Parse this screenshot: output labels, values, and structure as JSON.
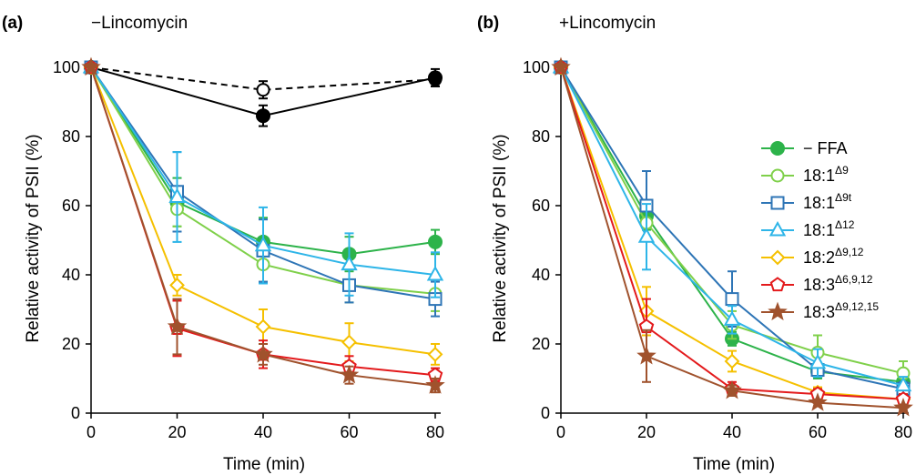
{
  "chart_data": [
    {
      "type": "line",
      "panel_label": "(a)",
      "title": "−Lincomycin",
      "xlabel": "Time (min)",
      "ylabel": "Relative activity of PSII (%)",
      "x": [
        0,
        20,
        40,
        60,
        80
      ],
      "xlim": [
        0,
        80
      ],
      "ylim": [
        0,
        100
      ],
      "xticks": [
        "0",
        "20",
        "40",
        "60",
        "80"
      ],
      "yticks": [
        "0",
        "20",
        "40",
        "60",
        "80",
        "100"
      ],
      "grid": false,
      "legend": null,
      "series": [
        {
          "x": [
            0,
            40,
            80
          ],
          "values": [
            100,
            93.5,
            96.5
          ],
          "errors": [
            1.5,
            2.5,
            2.0
          ],
          "color": "#000000",
          "marker": "circle-open",
          "dash": true
        },
        {
          "x": [
            0,
            40,
            80
          ],
          "values": [
            100,
            86,
            97
          ],
          "errors": [
            1.5,
            3.0,
            2.5
          ],
          "color": "#000000",
          "marker": "circle-filled",
          "dash": false
        },
        {
          "name": "− FFA",
          "values": [
            100,
            61,
            49.5,
            46,
            49.5
          ],
          "errors": [
            1,
            7,
            7,
            5,
            3.5
          ],
          "color": "#2db34a",
          "marker": "circle-filled"
        },
        {
          "name": "18:1Δ⁹",
          "values": [
            100,
            59,
            43,
            37,
            34.5
          ],
          "errors": [
            1,
            5,
            5,
            5,
            5
          ],
          "color": "#7fd04a",
          "marker": "circle-open"
        },
        {
          "name": "18:1Δ⁹ᵗ",
          "values": [
            100,
            64,
            47,
            37,
            33
          ],
          "errors": [
            1,
            11.5,
            9,
            5,
            5
          ],
          "color": "#2e75b6",
          "marker": "square-open"
        },
        {
          "name": "18:1Δ¹²",
          "values": [
            100,
            62.5,
            48.5,
            43,
            40
          ],
          "errors": [
            1,
            13,
            11,
            9,
            6.5
          ],
          "color": "#2eb5e8",
          "marker": "triangle-open"
        },
        {
          "name": "18:2Δ⁹,¹²",
          "values": [
            100,
            37,
            25,
            20.5,
            17
          ],
          "errors": [
            1,
            3,
            5,
            5.5,
            3
          ],
          "color": "#f5c000",
          "marker": "diamond-open"
        },
        {
          "name": "18:3Δ⁶,⁹,¹²",
          "values": [
            100,
            24.5,
            17,
            13.5,
            11
          ],
          "errors": [
            1,
            8,
            4,
            3,
            2
          ],
          "color": "#e31a1c",
          "marker": "pentagon-open"
        },
        {
          "name": "18:3Δ⁹,¹²,¹⁵",
          "values": [
            100,
            25,
            17,
            11,
            8
          ],
          "errors": [
            1,
            8,
            3,
            2.5,
            2
          ],
          "color": "#a0522d",
          "marker": "star-filled"
        }
      ]
    },
    {
      "type": "line",
      "panel_label": "(b)",
      "title": "+Lincomycin",
      "xlabel": "Time (min)",
      "ylabel": "Relative activity of PSII (%)",
      "x": [
        0,
        20,
        40,
        60,
        80
      ],
      "xlim": [
        0,
        80
      ],
      "ylim": [
        0,
        100
      ],
      "xticks": [
        "0",
        "20",
        "40",
        "60",
        "80"
      ],
      "yticks": [
        "0",
        "20",
        "40",
        "60",
        "80",
        "100"
      ],
      "grid": false,
      "legend": "right",
      "series": [
        {
          "name": "− FFA",
          "legend_base": "− FFA",
          "legend_sup": "",
          "values": [
            100,
            57,
            21.5,
            12,
            9
          ],
          "errors": [
            1,
            4,
            2,
            2,
            2
          ],
          "color": "#2db34a",
          "marker": "circle-filled"
        },
        {
          "name": "18:1Δ⁹",
          "legend_base": "18:1",
          "legend_sup": "Δ9",
          "values": [
            100,
            55,
            25.5,
            17.5,
            11.5
          ],
          "errors": [
            1,
            5,
            4,
            5,
            3.5
          ],
          "color": "#7fd04a",
          "marker": "circle-open"
        },
        {
          "name": "18:1Δ⁹ᵗ",
          "legend_base": "18:1",
          "legend_sup": "Δ9t",
          "values": [
            100,
            60,
            33,
            12.5,
            7
          ],
          "errors": [
            1,
            10,
            8,
            2,
            2
          ],
          "color": "#2e75b6",
          "marker": "square-open"
        },
        {
          "name": "18:1Δ¹²",
          "legend_base": "18:1",
          "legend_sup": "Δ12",
          "values": [
            100,
            51,
            27,
            14.5,
            8
          ],
          "errors": [
            1,
            9.5,
            4,
            4,
            2.5
          ],
          "color": "#2eb5e8",
          "marker": "triangle-open"
        },
        {
          "name": "18:2Δ⁹,¹²",
          "legend_base": "18:2",
          "legend_sup": "Δ9,12",
          "values": [
            100,
            29.5,
            15,
            6,
            4
          ],
          "errors": [
            1,
            7,
            3,
            1.5,
            1.5
          ],
          "color": "#f5c000",
          "marker": "diamond-open"
        },
        {
          "name": "18:3Δ⁶,⁹,¹²",
          "legend_base": "18:3",
          "legend_sup": "Δ6,9,12",
          "values": [
            100,
            25,
            7,
            5.5,
            4
          ],
          "errors": [
            1,
            8,
            2,
            1.5,
            1.5
          ],
          "color": "#e31a1c",
          "marker": "pentagon-open"
        },
        {
          "name": "18:3Δ⁹,¹²,¹⁵",
          "legend_base": "18:3",
          "legend_sup": "Δ9,12,15",
          "values": [
            100,
            16.5,
            6.5,
            3,
            1.5
          ],
          "errors": [
            1,
            7.5,
            1.5,
            1,
            1
          ],
          "color": "#a0522d",
          "marker": "star-filled"
        }
      ]
    }
  ]
}
